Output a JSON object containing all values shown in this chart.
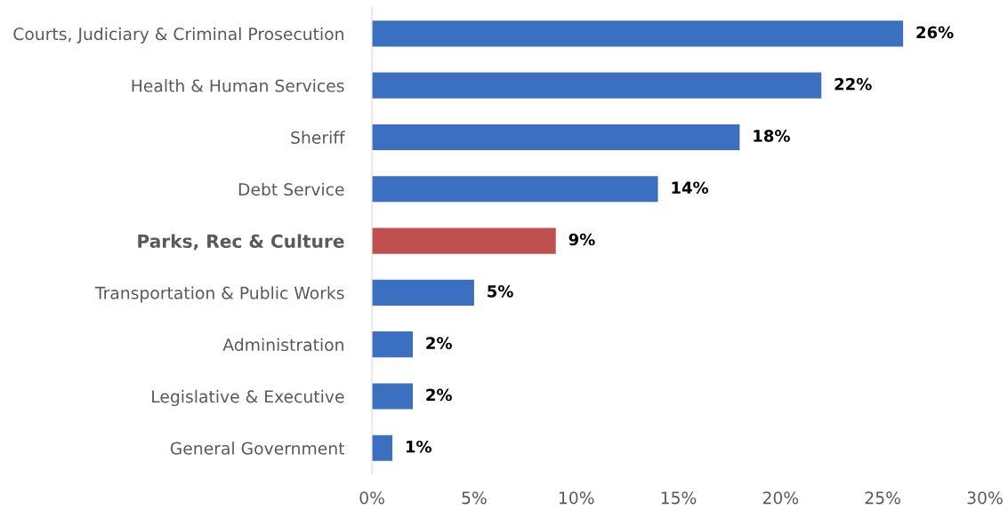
{
  "chart_data": {
    "type": "bar",
    "orientation": "horizontal",
    "categories": [
      "Courts, Judiciary & Criminal Prosecution",
      "Health & Human Services",
      "Sheriff",
      "Debt Service",
      "Parks, Rec & Culture",
      "Transportation & Public Works",
      "Administration",
      "Legislative & Executive",
      "General Government"
    ],
    "values": [
      26,
      22,
      18,
      14,
      9,
      5,
      2,
      2,
      1
    ],
    "colors": [
      "#3b6fbf",
      "#3b6fbf",
      "#3b6fbf",
      "#3b6fbf",
      "#c0504d",
      "#3b6fbf",
      "#3b6fbf",
      "#3b6fbf",
      "#3b6fbf"
    ],
    "value_labels": [
      "26%",
      "22%",
      "18%",
      "14%",
      "9%",
      "5%",
      "2%",
      "2%",
      "1%"
    ],
    "xlim": [
      0,
      30
    ],
    "xticks": [
      {
        "value": 0,
        "label": "0%"
      },
      {
        "value": 5,
        "label": "5%"
      },
      {
        "value": 10,
        "label": "10%"
      },
      {
        "value": 15,
        "label": "15%"
      },
      {
        "value": 20,
        "label": "20%"
      },
      {
        "value": 25,
        "label": "25%"
      },
      {
        "value": 30,
        "label": "30%"
      }
    ],
    "grid": false,
    "legend": false
  }
}
